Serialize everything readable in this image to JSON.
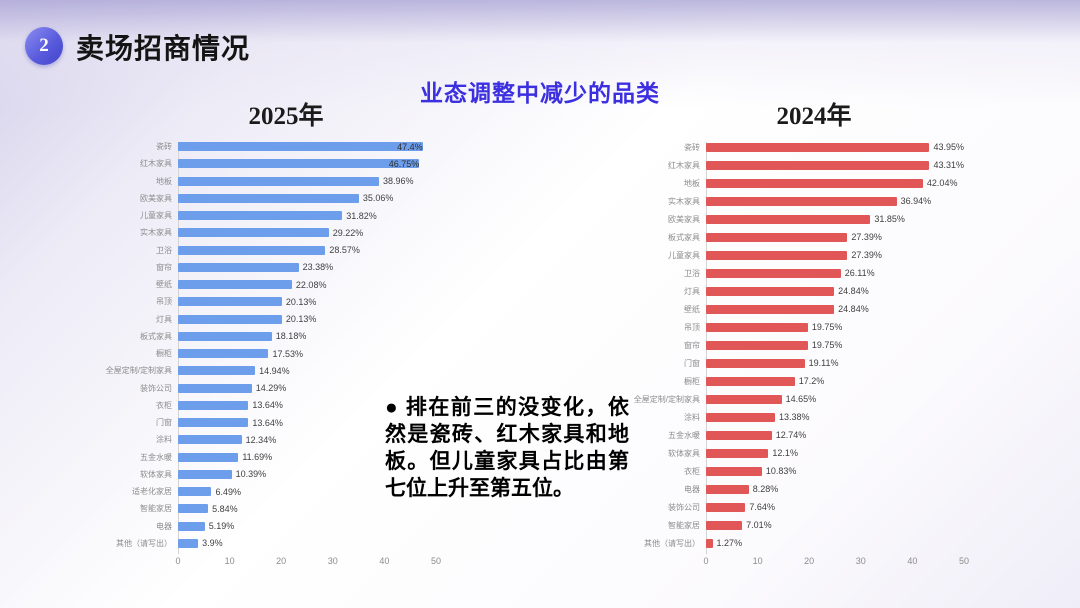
{
  "slide": {
    "badge_number": "2",
    "header_title": "卖场招商情况",
    "subtitle": "业态调整中减少的品类",
    "annotation": "●  排在前三的没变化，依然是瓷砖、红木家具和地板。但儿童家具占比由第七位上升至第五位。"
  },
  "colors": {
    "badge_purple": "#5a5cdd",
    "subtitle_blue": "#3b2fe0",
    "bar_2025_blue": "#6d9eeb",
    "bar_2024_red": "#e15757",
    "axis_gray": "#8c8c8c"
  },
  "chart_data": [
    {
      "type": "bar",
      "orientation": "horizontal",
      "title": "2025年",
      "bar_color": "#6d9eeb",
      "xlim": [
        0,
        50
      ],
      "x_ticks": [
        "0",
        "10",
        "20",
        "30",
        "40",
        "50"
      ],
      "grid": false,
      "legend": "none",
      "label_inside_threshold": 44,
      "categories": [
        "瓷砖",
        "红木家具",
        "地板",
        "欧美家具",
        "儿童家具",
        "实木家具",
        "卫浴",
        "窗帘",
        "壁纸",
        "吊顶",
        "灯具",
        "板式家具",
        "橱柜",
        "全屋定制/定制家具",
        "装饰公司",
        "衣柜",
        "门窗",
        "涂料",
        "五金水暖",
        "软体家具",
        "适老化家居",
        "智能家居",
        "电器",
        "其他（请写出）"
      ],
      "values": [
        47.4,
        46.75,
        38.96,
        35.06,
        31.82,
        29.22,
        28.57,
        23.38,
        22.08,
        20.13,
        20.13,
        18.18,
        17.53,
        14.94,
        14.29,
        13.64,
        13.64,
        12.34,
        11.69,
        10.39,
        6.49,
        5.84,
        5.19,
        3.9
      ],
      "value_labels": [
        "47.4%",
        "46.75%",
        "38.96%",
        "35.06%",
        "31.82%",
        "29.22%",
        "28.57%",
        "23.38%",
        "22.08%",
        "20.13%",
        "20.13%",
        "18.18%",
        "17.53%",
        "14.94%",
        "14.29%",
        "13.64%",
        "13.64%",
        "12.34%",
        "11.69%",
        "10.39%",
        "6.49%",
        "5.84%",
        "5.19%",
        "3.9%"
      ]
    },
    {
      "type": "bar",
      "orientation": "horizontal",
      "title": "2024年",
      "bar_color": "#e15757",
      "xlim": [
        0,
        50
      ],
      "x_ticks": [
        "0",
        "10",
        "20",
        "30",
        "40",
        "50"
      ],
      "grid": false,
      "legend": "none",
      "label_inside_threshold": 44,
      "categories": [
        "瓷砖",
        "红木家具",
        "地板",
        "实木家具",
        "欧美家具",
        "板式家具",
        "儿童家具",
        "卫浴",
        "灯具",
        "壁纸",
        "吊顶",
        "窗帘",
        "门窗",
        "橱柜",
        "全屋定制/定制家具",
        "涂料",
        "五金水暖",
        "软体家具",
        "衣柜",
        "电器",
        "装饰公司",
        "智能家居",
        "其他（请写出）"
      ],
      "values": [
        43.95,
        43.31,
        42.04,
        36.94,
        31.85,
        27.39,
        27.39,
        26.11,
        24.84,
        24.84,
        19.75,
        19.75,
        19.11,
        17.2,
        14.65,
        13.38,
        12.74,
        12.1,
        10.83,
        8.28,
        7.64,
        7.01,
        1.27
      ],
      "value_labels": [
        "43.95%",
        "43.31%",
        "42.04%",
        "36.94%",
        "31.85%",
        "27.39%",
        "27.39%",
        "26.11%",
        "24.84%",
        "24.84%",
        "19.75%",
        "19.75%",
        "19.11%",
        "17.2%",
        "14.65%",
        "13.38%",
        "12.74%",
        "12.1%",
        "10.83%",
        "8.28%",
        "7.64%",
        "7.01%",
        "1.27%"
      ]
    }
  ]
}
